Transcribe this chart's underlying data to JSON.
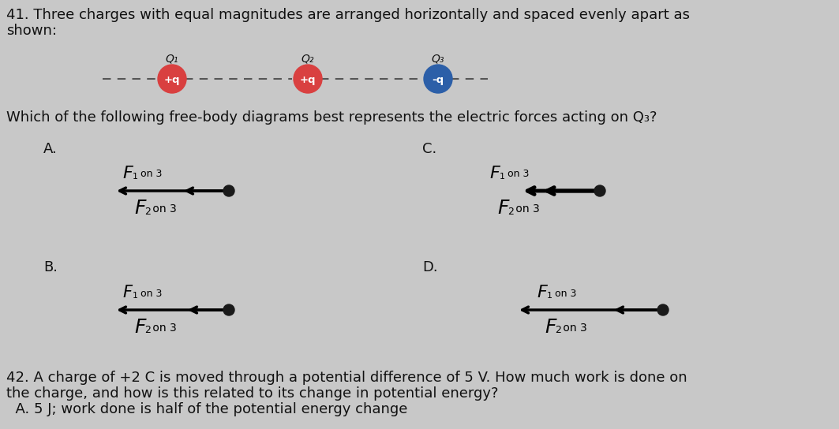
{
  "bg_color": "#c8c8c8",
  "text_color": "#111111",
  "charge_colors": [
    "#d94040",
    "#d94040",
    "#2c5fa8"
  ],
  "charge_signs": [
    "+q",
    "+q",
    "-q"
  ],
  "charge_labels": [
    "Q₁",
    "Q₂",
    "Q₃"
  ],
  "title_line1": "41. Three charges with equal magnitudes are arranged horizontally and spaced evenly apart as",
  "title_line2": "shown:",
  "question": "Which of the following free-body diagrams best represents the electric forces acting on Q₃?",
  "q42_line1": "42. A charge of +2 C is moved through a potential difference of 5 V. How much work is done on",
  "q42_line2": "the charge, and how is this related to its change in potential energy?",
  "q42_line3": "  A. 5 J; work done is half of the potential energy change",
  "panel_labels": [
    "A.",
    "B.",
    "C.",
    "D."
  ],
  "fs_main": 13,
  "fs_small": 10
}
